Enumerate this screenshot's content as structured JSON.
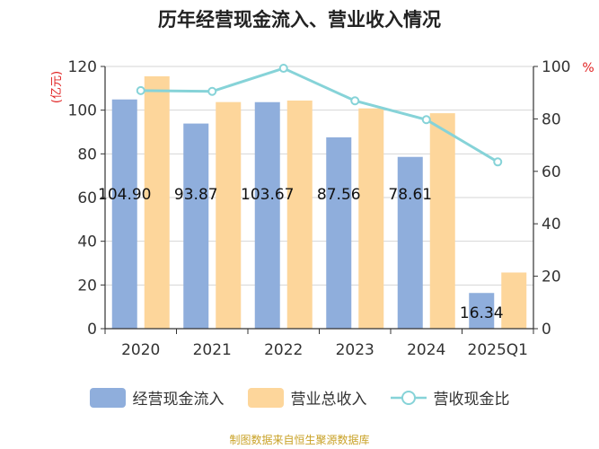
{
  "chart_data": {
    "type": "bar",
    "title": "历年经营现金流入、营业收入情况",
    "categories": [
      "2020",
      "2021",
      "2022",
      "2023",
      "2024",
      "2025Q1"
    ],
    "left_axis": {
      "unit": "(亿元)",
      "ylim": [
        0,
        120
      ],
      "ticks": [
        "0",
        "20",
        "40",
        "60",
        "80",
        "100",
        "120"
      ]
    },
    "right_axis": {
      "unit": "%",
      "ylim": [
        0,
        100
      ],
      "ticks": [
        "0",
        "20",
        "40",
        "60",
        "80",
        "100"
      ]
    },
    "grid": true,
    "legend_position": "bottom",
    "series": [
      {
        "name": "经营现金流入",
        "kind": "bar",
        "axis": "left",
        "color": "#8faedc",
        "values": [
          104.9,
          93.87,
          103.67,
          87.56,
          78.61,
          16.34
        ],
        "labels": [
          "104.90",
          "93.87",
          "103.67",
          "87.56",
          "78.61",
          "16.34"
        ]
      },
      {
        "name": "营业总收入",
        "kind": "bar",
        "axis": "left",
        "color": "#fdd69b",
        "values": [
          115.5,
          103.7,
          104.4,
          100.8,
          98.6,
          25.7
        ]
      },
      {
        "name": "营收现金比",
        "kind": "line",
        "axis": "right",
        "color": "#86d3d8",
        "values": [
          90.8,
          90.5,
          99.3,
          86.9,
          79.7,
          63.6
        ]
      }
    ]
  },
  "source_text": "制图数据来自恒生聚源数据库"
}
